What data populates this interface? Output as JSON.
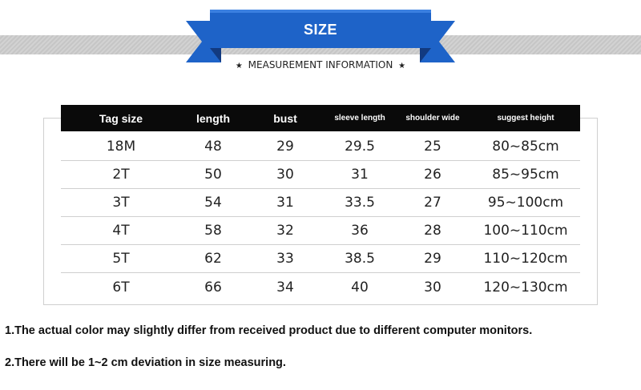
{
  "banner": {
    "title": "SIZE",
    "subtitle": "MEASUREMENT INFORMATION",
    "star": "★",
    "color": "#1e63c8",
    "fold_color": "#123a80"
  },
  "table": {
    "headers": [
      "Tag size",
      "length",
      "bust",
      "sleeve length",
      "shoulder wide",
      "suggest height"
    ],
    "rows": [
      [
        "18M",
        "48",
        "29",
        "29.5",
        "25",
        "80~85cm"
      ],
      [
        "2T",
        "50",
        "30",
        "31",
        "26",
        "85~95cm"
      ],
      [
        "3T",
        "54",
        "31",
        "33.5",
        "27",
        "95~100cm"
      ],
      [
        "4T",
        "58",
        "32",
        "36",
        "28",
        "100~110cm"
      ],
      [
        "5T",
        "62",
        "33",
        "38.5",
        "29",
        "110~120cm"
      ],
      [
        "6T",
        "66",
        "34",
        "40",
        "30",
        "120~130cm"
      ]
    ]
  },
  "notes": [
    "1.The actual color may slightly differ from received product due to different computer monitors.",
    "2.There will be 1~2 cm deviation in size measuring."
  ]
}
